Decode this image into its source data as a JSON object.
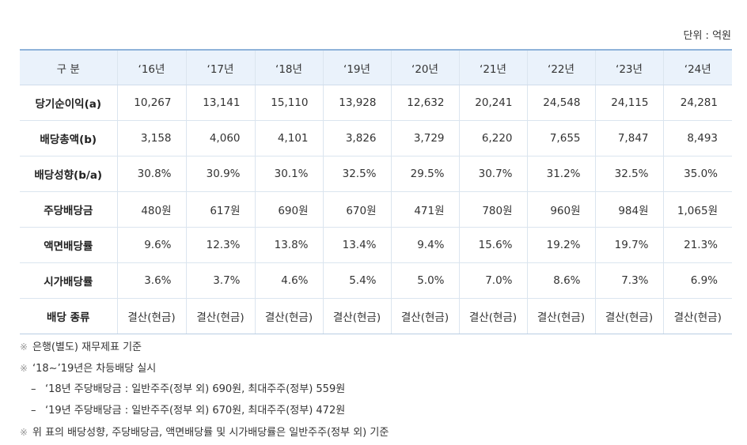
{
  "unit_label": "단위 : 억원",
  "table": {
    "header_label": "구 분",
    "years": [
      "‘16년",
      "‘17년",
      "‘18년",
      "‘19년",
      "‘20년",
      "‘21년",
      "‘22년",
      "‘23년",
      "‘24년"
    ],
    "rows": [
      {
        "label": "당기순이익(a)",
        "values": [
          "10,267",
          "13,141",
          "15,110",
          "13,928",
          "12,632",
          "20,241",
          "24,548",
          "24,115",
          "24,281"
        ]
      },
      {
        "label": "배당총액(b)",
        "values": [
          "3,158",
          "4,060",
          "4,101",
          "3,826",
          "3,729",
          "6,220",
          "7,655",
          "7,847",
          "8,493"
        ]
      },
      {
        "label": "배당성향(b/a)",
        "values": [
          "30.8%",
          "30.9%",
          "30.1%",
          "32.5%",
          "29.5%",
          "30.7%",
          "31.2%",
          "32.5%",
          "35.0%"
        ]
      },
      {
        "label": "주당배당금",
        "values": [
          "480원",
          "617원",
          "690원",
          "670원",
          "471원",
          "780원",
          "960원",
          "984원",
          "1,065원"
        ]
      },
      {
        "label": "액면배당률",
        "values": [
          "9.6%",
          "12.3%",
          "13.8%",
          "13.4%",
          "9.4%",
          "15.6%",
          "19.2%",
          "19.7%",
          "21.3%"
        ]
      },
      {
        "label": "시가배당률",
        "values": [
          "3.6%",
          "3.7%",
          "4.6%",
          "5.4%",
          "5.0%",
          "7.0%",
          "8.6%",
          "7.3%",
          "6.9%"
        ]
      },
      {
        "label": "배당 종류",
        "values": [
          "결산(현금)",
          "결산(현금)",
          "결산(현금)",
          "결산(현금)",
          "결산(현금)",
          "결산(현금)",
          "결산(현금)",
          "결산(현금)",
          "결산(현금)"
        ]
      }
    ]
  },
  "notes": {
    "mark": "※",
    "dash": "–",
    "n1": "은행(별도) 재무제표 기준",
    "n2": "‘18∼’19년은 차등배당 실시",
    "s1": "‘18년 주당배당금 : 일반주주(정부 외) 690원, 최대주주(정부) 559원",
    "s2": "‘19년 주당배당금 : 일반주주(정부 외) 670원, 최대주주(정부) 472원",
    "n3": "위 표의 배당성향, 주당배당금, 액면배당률 및 시가배당률은 일반주주(정부 외) 기준"
  }
}
